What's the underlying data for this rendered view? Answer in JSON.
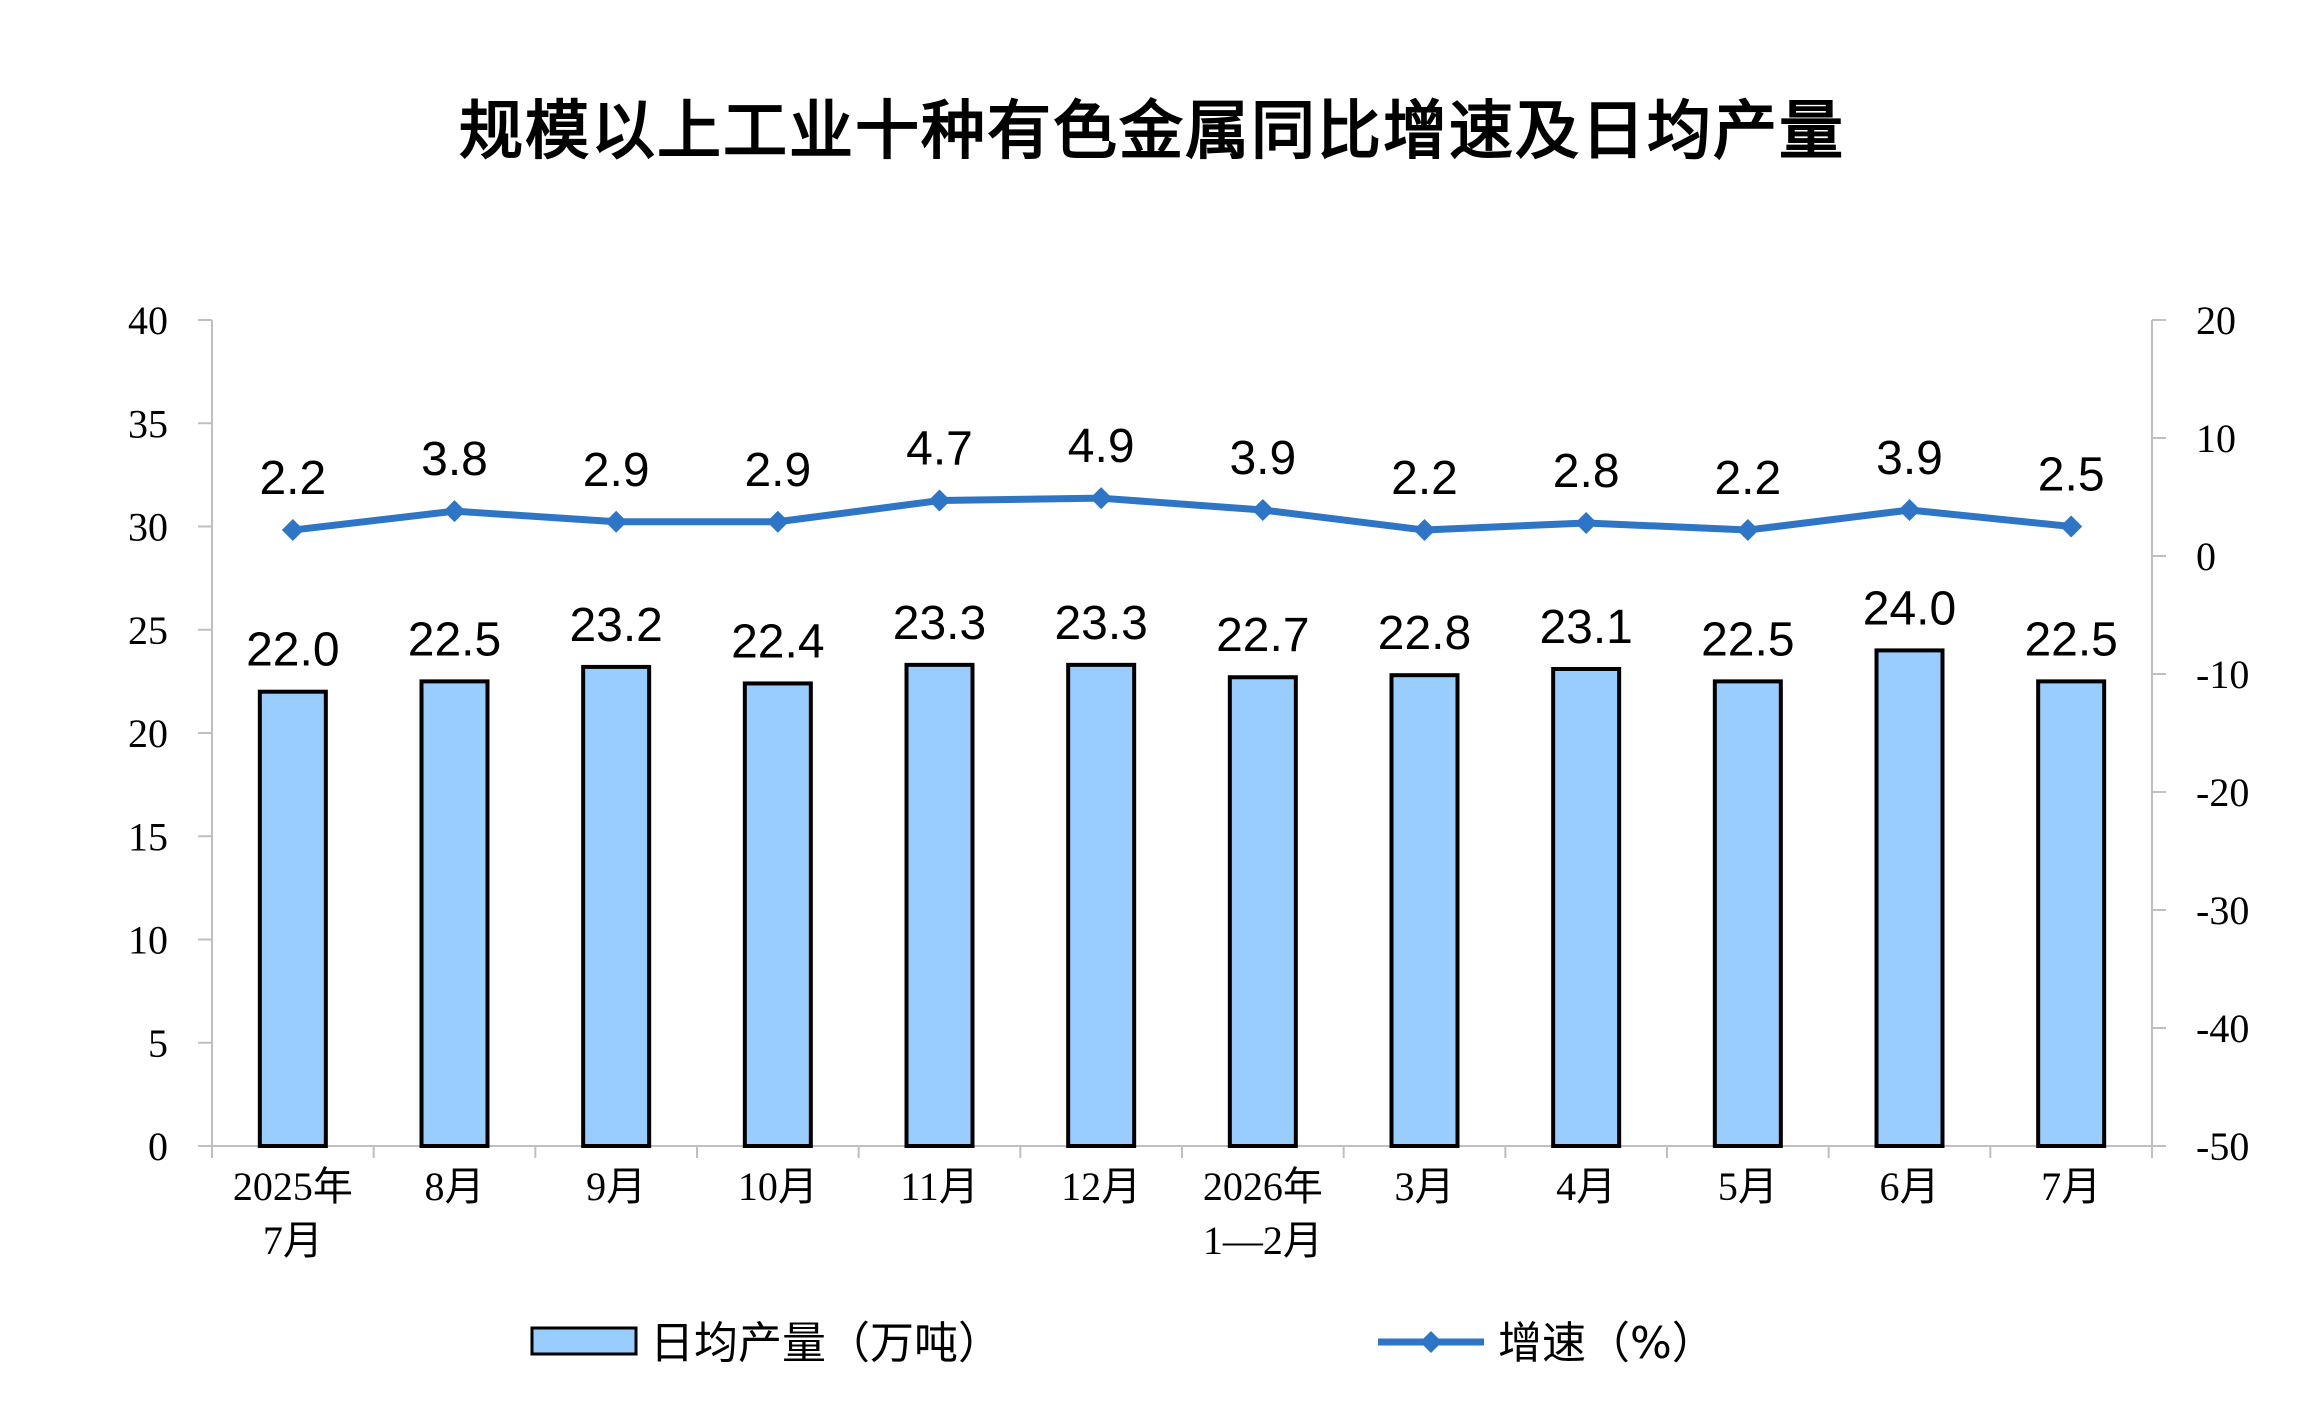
{
  "chart_data": {
    "type": "bar+line",
    "title": "规模以上工业十种有色金属同比增速及日均产量",
    "categories": [
      [
        "2025年",
        "7月"
      ],
      [
        "8月"
      ],
      [
        "9月"
      ],
      [
        "10月"
      ],
      [
        "11月"
      ],
      [
        "12月"
      ],
      [
        "2026年",
        "1—2月"
      ],
      [
        "3月"
      ],
      [
        "4月"
      ],
      [
        "5月"
      ],
      [
        "6月"
      ],
      [
        "7月"
      ]
    ],
    "series": [
      {
        "name": "日均产量（万吨）",
        "type": "bar",
        "axis": "left",
        "color": "#99CCFF",
        "values": [
          22.0,
          22.5,
          23.2,
          22.4,
          23.3,
          23.3,
          22.7,
          22.8,
          23.1,
          22.5,
          24.0,
          22.5
        ],
        "labels": [
          "22.0",
          "22.5",
          "23.2",
          "22.4",
          "23.3",
          "23.3",
          "22.7",
          "22.8",
          "23.1",
          "22.5",
          "24.0",
          "22.5"
        ]
      },
      {
        "name": "增速（%）",
        "type": "line",
        "axis": "right",
        "color": "#2E75C6",
        "values": [
          2.2,
          3.8,
          2.9,
          2.9,
          4.7,
          4.9,
          3.9,
          2.2,
          2.8,
          2.2,
          3.9,
          2.5
        ],
        "labels": [
          "2.2",
          "3.8",
          "2.9",
          "2.9",
          "4.7",
          "4.9",
          "3.9",
          "2.2",
          "2.8",
          "2.2",
          "3.9",
          "2.5"
        ]
      }
    ],
    "y_left": {
      "min": 0,
      "max": 40,
      "step": 5,
      "ticks": [
        "0",
        "5",
        "10",
        "15",
        "20",
        "25",
        "30",
        "35",
        "40"
      ]
    },
    "y_right": {
      "min": -50,
      "max": 20,
      "step": 10,
      "ticks": [
        "-50",
        "-40",
        "-30",
        "-20",
        "-10",
        "0",
        "10",
        "20"
      ]
    },
    "legend_position": "bottom"
  }
}
